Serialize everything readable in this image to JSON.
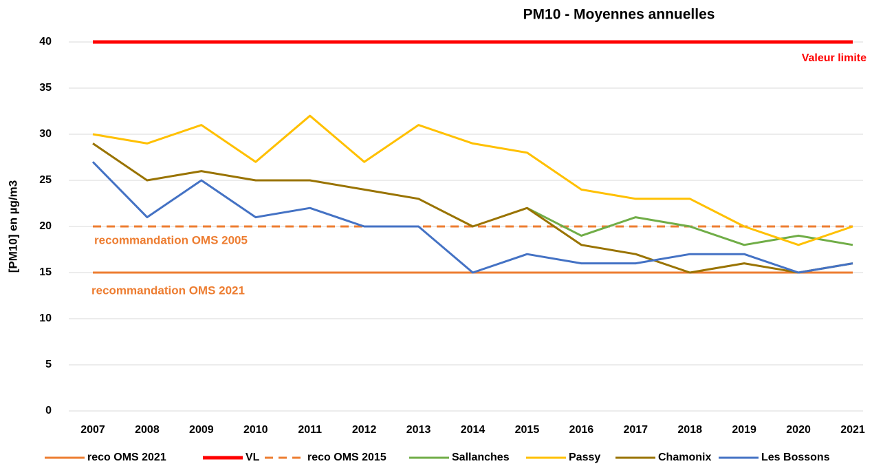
{
  "chart_data": {
    "type": "line",
    "title": "PM10 - Moyennes annuelles",
    "y_label": "[PM10] en µg/m3",
    "annotations": [
      "Valeur limite",
      "recommandation OMS 2005",
      "recommandation OMS 2021"
    ],
    "categories": [
      "2007",
      "2008",
      "2009",
      "2010",
      "2011",
      "2012",
      "2013",
      "2014",
      "2015",
      "2016",
      "2017",
      "2018",
      "2019",
      "2020",
      "2021"
    ],
    "series": [
      {
        "name": "reco OMS 2021",
        "color": "#ed7d31",
        "line_width": 3,
        "dashed": false,
        "values": [
          15,
          15,
          15,
          15,
          15,
          15,
          15,
          15,
          15,
          15,
          15,
          15,
          15,
          15,
          15
        ]
      },
      {
        "name": "VL",
        "color": "#ff0000",
        "line_width": 5,
        "dashed": false,
        "values": [
          40,
          40,
          40,
          40,
          40,
          40,
          40,
          40,
          40,
          40,
          40,
          40,
          40,
          40,
          40
        ]
      },
      {
        "name": "reco OMS 2015",
        "color": "#ed7d31",
        "line_width": 3,
        "dashed": true,
        "values": [
          20,
          20,
          20,
          20,
          20,
          20,
          20,
          20,
          20,
          20,
          20,
          20,
          20,
          20,
          20
        ]
      },
      {
        "name": "Sallanches",
        "color": "#70ad47",
        "line_width": 3,
        "dashed": false,
        "values": [
          null,
          null,
          null,
          null,
          null,
          null,
          null,
          null,
          22,
          19,
          21,
          20,
          18,
          19,
          18
        ]
      },
      {
        "name": "Passy",
        "color": "#ffc000",
        "line_width": 3,
        "dashed": false,
        "values": [
          30,
          29,
          31,
          27,
          32,
          27,
          31,
          29,
          28,
          24,
          23,
          23,
          20,
          18,
          20
        ]
      },
      {
        "name": "Chamonix",
        "color": "#997300",
        "line_width": 3,
        "dashed": false,
        "values": [
          29,
          25,
          26,
          25,
          25,
          24,
          23,
          20,
          22,
          18,
          17,
          15,
          16,
          15,
          16
        ]
      },
      {
        "name": "Les Bossons",
        "color": "#4472c4",
        "line_width": 3,
        "dashed": false,
        "values": [
          27,
          21,
          25,
          21,
          22,
          20,
          20,
          15,
          17,
          16,
          16,
          17,
          17,
          15,
          16
        ]
      }
    ],
    "ylim": [
      0,
      40
    ],
    "yticks": [
      0,
      5,
      10,
      15,
      20,
      25,
      30,
      35,
      40
    ],
    "grid": true,
    "legend": "bottom"
  }
}
